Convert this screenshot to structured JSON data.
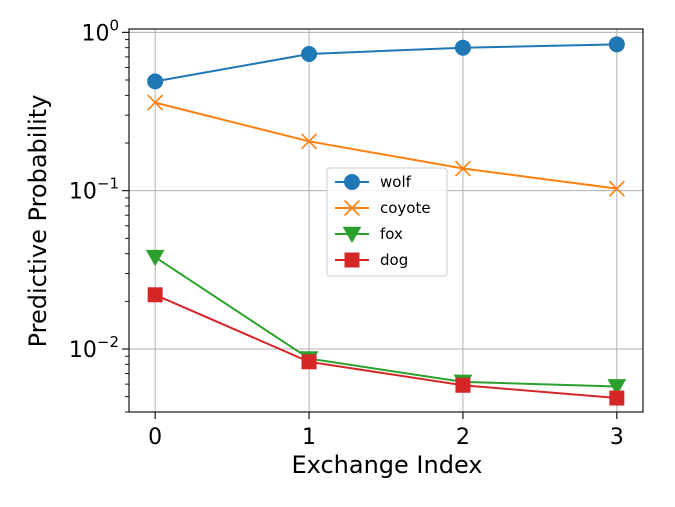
{
  "chart_data": {
    "type": "line",
    "title": "",
    "xlabel": "Exchange Index",
    "ylabel": "Predictive Probability",
    "x": [
      0,
      1,
      2,
      3
    ],
    "x_tick_labels": [
      "0",
      "1",
      "2",
      "3"
    ],
    "yscale": "log",
    "ylim": [
      0.004,
      1.05
    ],
    "y_ticks": [
      {
        "value": 1,
        "base": "10",
        "exp": "0"
      },
      {
        "value": 0.1,
        "base": "10",
        "exp": "−1"
      },
      {
        "value": 0.01,
        "base": "10",
        "exp": "−2"
      }
    ],
    "grid": true,
    "legend_position": "center",
    "series": [
      {
        "name": "wolf",
        "color": "#1f77b4",
        "marker": "circle",
        "values": [
          0.49,
          0.73,
          0.8,
          0.84
        ]
      },
      {
        "name": "coyote",
        "color": "#ff7f0e",
        "marker": "x",
        "values": [
          0.36,
          0.205,
          0.138,
          0.103
        ]
      },
      {
        "name": "fox",
        "color": "#2ca02c",
        "marker": "triangle-down",
        "values": [
          0.038,
          0.0087,
          0.0062,
          0.0058
        ]
      },
      {
        "name": "dog",
        "color": "#d62728",
        "marker": "square",
        "values": [
          0.022,
          0.0083,
          0.0059,
          0.0049
        ]
      }
    ]
  }
}
